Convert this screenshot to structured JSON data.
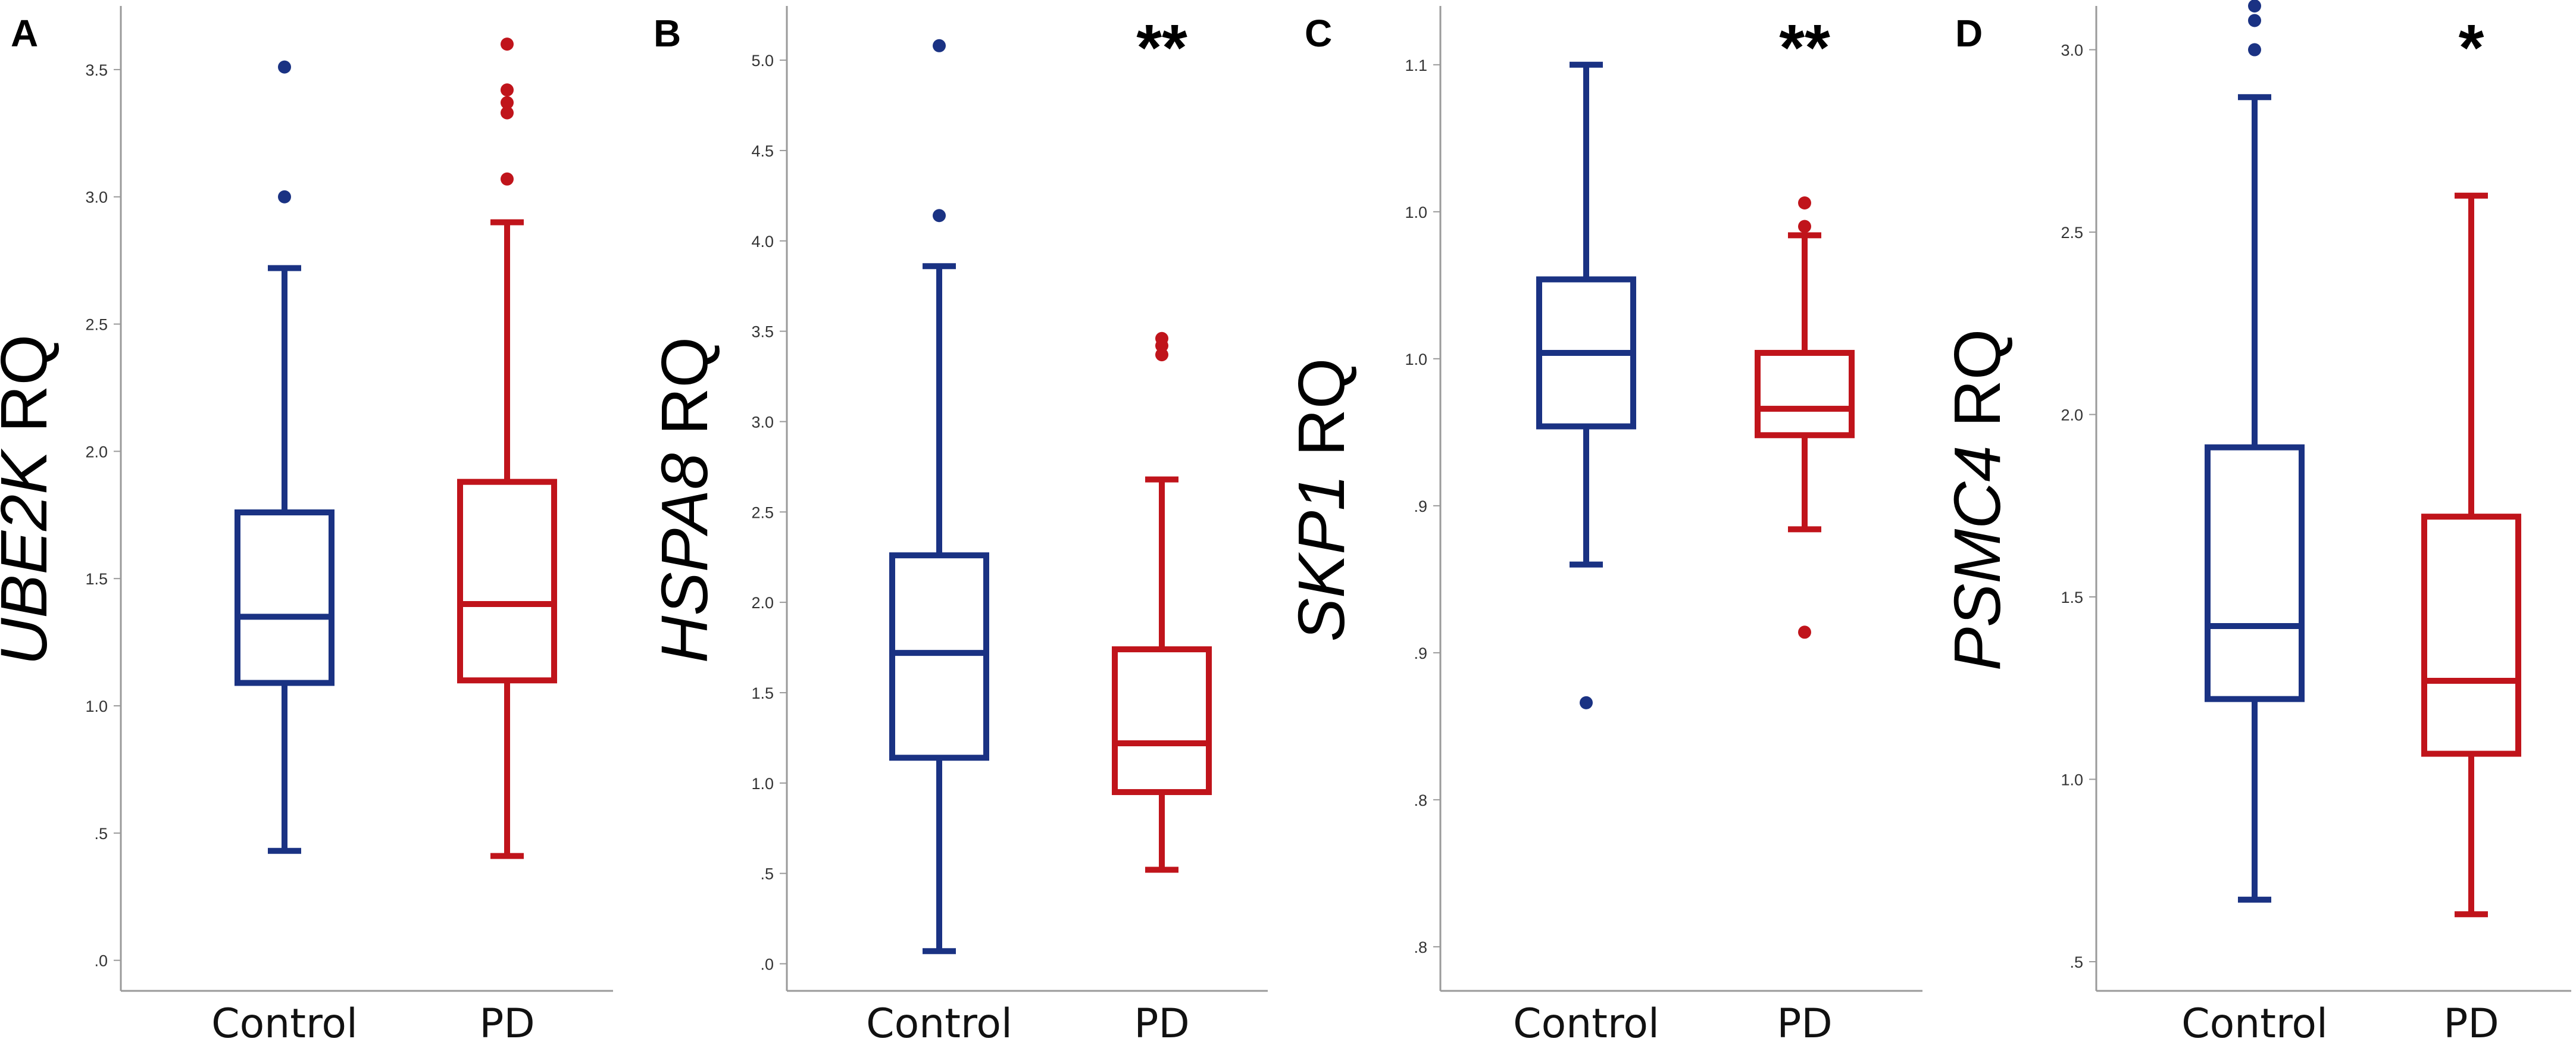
{
  "colors": {
    "control": "#1a3283",
    "pd": "#c0141b"
  },
  "chart_data": [
    {
      "type": "box",
      "panel": "A",
      "ylabel_gene": "UBE2K",
      "ylabel_unit": " RQ",
      "significance": "",
      "categories": [
        "Control",
        "PD"
      ],
      "yticks": [
        0.0,
        0.5,
        1.0,
        1.5,
        2.0,
        2.5,
        3.0,
        3.5
      ],
      "ytick_labels": [
        ".0",
        ".5",
        "1.0",
        "1.5",
        "2.0",
        "2.5",
        "3.0",
        "3.5"
      ],
      "ylim": [
        -0.12,
        3.75
      ],
      "boxes": [
        {
          "name": "Control",
          "min": 0.43,
          "q1": 1.09,
          "median": 1.35,
          "q3": 1.76,
          "max": 2.72,
          "outliers": [
            3.0,
            3.51
          ]
        },
        {
          "name": "PD",
          "min": 0.41,
          "q1": 1.1,
          "median": 1.4,
          "q3": 1.88,
          "max": 2.9,
          "outliers": [
            3.07,
            3.33,
            3.37,
            3.42,
            3.6
          ]
        }
      ]
    },
    {
      "type": "box",
      "panel": "B",
      "ylabel_gene": "HSPA8",
      "ylabel_unit": " RQ",
      "significance": "**",
      "categories": [
        "Control",
        "PD"
      ],
      "yticks": [
        0.0,
        0.5,
        1.0,
        1.5,
        2.0,
        2.5,
        3.0,
        3.5,
        4.0,
        4.5,
        5.0
      ],
      "ytick_labels": [
        ".0",
        ".5",
        "1.0",
        "1.5",
        "2.0",
        "2.5",
        "3.0",
        "3.5",
        "4.0",
        "4.5",
        "5.0"
      ],
      "ylim": [
        -0.15,
        5.3
      ],
      "boxes": [
        {
          "name": "Control",
          "min": 0.07,
          "q1": 1.14,
          "median": 1.72,
          "q3": 2.26,
          "max": 3.86,
          "outliers": [
            4.14,
            5.08
          ]
        },
        {
          "name": "PD",
          "min": 0.52,
          "q1": 0.95,
          "median": 1.22,
          "q3": 1.74,
          "max": 2.68,
          "outliers": [
            3.37,
            3.42,
            3.46
          ]
        }
      ]
    },
    {
      "type": "box",
      "panel": "C",
      "ylabel_gene": "SKP1",
      "ylabel_unit": " RQ",
      "significance": "**",
      "categories": [
        "Control",
        "PD"
      ],
      "yticks": [
        0.8,
        0.85,
        0.9,
        0.95,
        1.0,
        1.05,
        1.1
      ],
      "ytick_labels": [
        ".8",
        ".8",
        ".9",
        ".9",
        "1.0",
        "1.0",
        "1.1"
      ],
      "ylim": [
        0.785,
        1.12
      ],
      "boxes": [
        {
          "name": "Control",
          "min": 0.93,
          "q1": 0.977,
          "median": 1.002,
          "q3": 1.027,
          "max": 1.1,
          "outliers": [
            0.883
          ]
        },
        {
          "name": "PD",
          "min": 0.942,
          "q1": 0.974,
          "median": 0.983,
          "q3": 1.002,
          "max": 1.042,
          "outliers": [
            0.907,
            1.045,
            1.053
          ]
        }
      ]
    },
    {
      "type": "box",
      "panel": "D",
      "ylabel_gene": "PSMC4",
      "ylabel_unit": " RQ",
      "significance": "*",
      "categories": [
        "Control",
        "PD"
      ],
      "yticks": [
        0.5,
        1.0,
        1.5,
        2.0,
        2.5,
        3.0
      ],
      "ytick_labels": [
        ".5",
        "1.0",
        "1.5",
        "2.0",
        "2.5",
        "3.0"
      ],
      "ylim": [
        0.42,
        3.12
      ],
      "boxes": [
        {
          "name": "Control",
          "min": 0.67,
          "q1": 1.22,
          "median": 1.42,
          "q3": 1.91,
          "max": 2.87,
          "outliers": [
            3.0,
            3.08,
            3.12
          ]
        },
        {
          "name": "PD",
          "min": 0.63,
          "q1": 1.07,
          "median": 1.27,
          "q3": 1.72,
          "max": 2.6,
          "outliers": []
        }
      ]
    }
  ]
}
